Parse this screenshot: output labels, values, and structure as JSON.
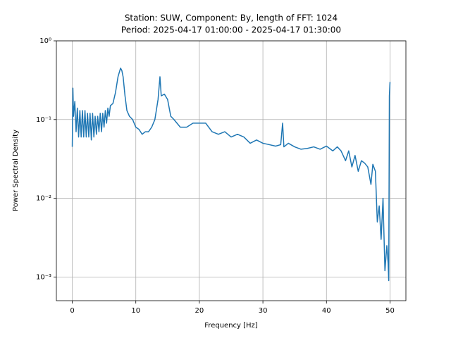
{
  "chart_data": {
    "type": "line",
    "title": "Station: SUW, Component: By, length of FFT: 1024",
    "subtitle": "Period: 2025-04-17 01:00:00 - 2025-04-17 01:30:00",
    "x_label": "Frequency [Hz]",
    "y_label": "Power Spectral Density",
    "log_y": true,
    "grid": true,
    "xlim": [
      -2.5,
      52.5
    ],
    "xticks": [
      0,
      10,
      20,
      30,
      40,
      50
    ],
    "ylim": [
      0.0005,
      1
    ],
    "yticks": [
      {
        "value": 0.001,
        "label": "10⁻³"
      },
      {
        "value": 0.01,
        "label": "10⁻²"
      },
      {
        "value": 0.1,
        "label": "10⁻¹"
      },
      {
        "value": 1,
        "label": "10⁰"
      }
    ],
    "series": [
      {
        "color": "#1f77b4",
        "x": [
          0,
          0.1,
          0.2,
          0.4,
          0.6,
          0.8,
          1.0,
          1.2,
          1.4,
          1.6,
          1.8,
          2.0,
          2.2,
          2.4,
          2.6,
          2.8,
          3.0,
          3.2,
          3.4,
          3.6,
          3.8,
          4.0,
          4.2,
          4.4,
          4.6,
          4.8,
          5.0,
          5.2,
          5.4,
          5.6,
          5.8,
          6.0,
          6.4,
          6.8,
          7.2,
          7.6,
          7.8,
          8.0,
          8.3,
          8.6,
          9.0,
          9.5,
          10.0,
          10.5,
          11.0,
          11.5,
          12.0,
          12.5,
          13.0,
          13.5,
          13.8,
          14.0,
          14.5,
          15.0,
          15.5,
          16.0,
          17,
          18,
          19,
          20,
          21,
          22,
          23,
          24,
          25,
          26,
          27,
          28,
          29,
          30,
          31,
          32,
          32.8,
          33.1,
          33.3,
          34,
          35,
          36,
          37,
          38,
          39,
          40,
          41,
          41.7,
          42.3,
          43,
          43.5,
          44,
          44.5,
          45,
          45.5,
          46,
          46.5,
          47,
          47.3,
          47.7,
          48,
          48.3,
          48.6,
          48.9,
          49.2,
          49.5,
          49.7,
          49.8,
          49.9,
          50
        ],
        "values": [
          0.045,
          0.25,
          0.11,
          0.17,
          0.07,
          0.14,
          0.06,
          0.13,
          0.06,
          0.13,
          0.06,
          0.13,
          0.06,
          0.12,
          0.06,
          0.12,
          0.055,
          0.12,
          0.06,
          0.11,
          0.065,
          0.11,
          0.07,
          0.12,
          0.07,
          0.12,
          0.08,
          0.13,
          0.09,
          0.14,
          0.11,
          0.15,
          0.16,
          0.22,
          0.35,
          0.45,
          0.42,
          0.35,
          0.2,
          0.13,
          0.11,
          0.1,
          0.08,
          0.075,
          0.065,
          0.07,
          0.07,
          0.08,
          0.1,
          0.18,
          0.35,
          0.2,
          0.21,
          0.18,
          0.11,
          0.1,
          0.08,
          0.08,
          0.09,
          0.09,
          0.09,
          0.07,
          0.065,
          0.07,
          0.06,
          0.065,
          0.06,
          0.05,
          0.055,
          0.05,
          0.048,
          0.046,
          0.048,
          0.09,
          0.045,
          0.05,
          0.045,
          0.042,
          0.043,
          0.045,
          0.042,
          0.046,
          0.04,
          0.045,
          0.04,
          0.03,
          0.04,
          0.025,
          0.035,
          0.022,
          0.03,
          0.028,
          0.025,
          0.015,
          0.027,
          0.022,
          0.005,
          0.008,
          0.003,
          0.01,
          0.0012,
          0.0025,
          0.0015,
          0.0009,
          0.2,
          0.3
        ]
      }
    ]
  }
}
